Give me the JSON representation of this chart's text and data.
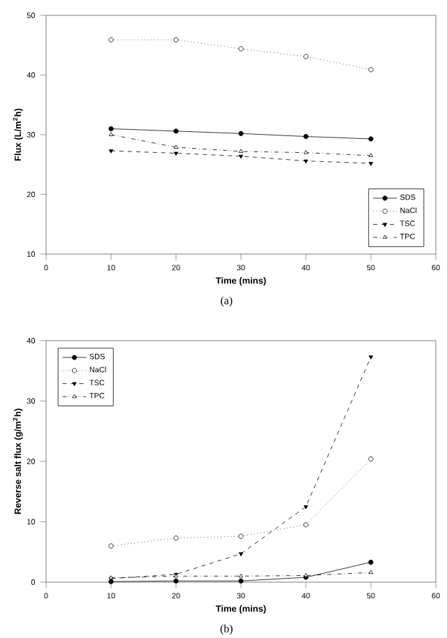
{
  "chart_data": [
    {
      "type": "line",
      "xlabel": "Time (mins)",
      "ylabel": "Flux (L/m$^{2}$h)",
      "x": [
        10,
        20,
        30,
        40,
        50
      ],
      "xlim": [
        0,
        60
      ],
      "xticks": [
        0,
        10,
        20,
        30,
        40,
        50,
        60
      ],
      "ylim": [
        10,
        50
      ],
      "yticks": [
        10,
        20,
        30,
        40,
        50
      ],
      "legend": "bottom right",
      "grid": false,
      "annotations": [
        "(a)"
      ],
      "series": [
        {
          "name": "SDS",
          "color": "#000000",
          "marker": "circle",
          "line_style": "solid",
          "values": [
            31.0,
            30.6,
            30.2,
            29.7,
            29.3
          ]
        },
        {
          "name": "NaCl",
          "color": "#000000",
          "marker": "circle",
          "line_style": "dotted",
          "values": [
            45.9,
            45.9,
            44.4,
            43.1,
            40.9
          ]
        },
        {
          "name": "TSC",
          "color": "#000000",
          "marker": "triangle",
          "line_style": "dashed",
          "values": [
            27.3,
            26.9,
            26.4,
            25.6,
            25.2
          ]
        },
        {
          "name": "TPC",
          "color": "#000000",
          "marker": "triangle",
          "line_style": "dashdot",
          "values": [
            30.0,
            27.9,
            27.2,
            27.0,
            26.5
          ]
        }
      ]
    },
    {
      "type": "line",
      "xlabel": "Time (mins)",
      "ylabel": "Reverse salt flux (g/m$^{2}$h)",
      "x": [
        10,
        20,
        30,
        40,
        50
      ],
      "xlim": [
        0,
        60
      ],
      "xticks": [
        0,
        10,
        20,
        30,
        40,
        50,
        60
      ],
      "ylim": [
        0,
        40
      ],
      "yticks": [
        0,
        10,
        20,
        30,
        40
      ],
      "legend": "top left",
      "grid": false,
      "annotations": [
        "(b)"
      ],
      "series": [
        {
          "name": "SDS",
          "color": "#000000",
          "marker": "circle",
          "line_style": "solid",
          "values": [
            0.1,
            0.2,
            0.2,
            0.8,
            3.3
          ]
        },
        {
          "name": "NaCl",
          "color": "#000000",
          "marker": "circle",
          "line_style": "dotted",
          "values": [
            6.0,
            7.3,
            7.6,
            9.5,
            20.4
          ]
        },
        {
          "name": "TSC",
          "color": "#000000",
          "marker": "triangle",
          "line_style": "dashed",
          "values": [
            0.6,
            1.3,
            4.7,
            12.5,
            37.3
          ]
        },
        {
          "name": "TPC",
          "color": "#000000",
          "marker": "triangle",
          "line_style": "dashdot",
          "values": [
            0.7,
            1.0,
            1.0,
            1.1,
            1.6
          ]
        }
      ]
    }
  ]
}
